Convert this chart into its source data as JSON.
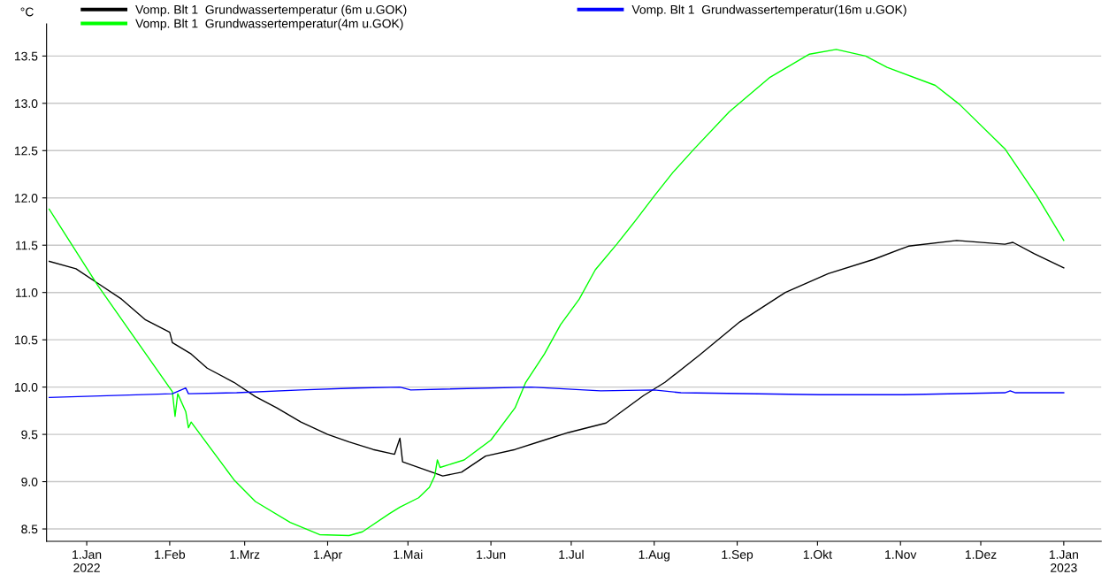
{
  "chart_data": {
    "type": "line",
    "ylabel": "°C",
    "grid": "y",
    "legend": "top",
    "marker": "none",
    "line_style": "solid",
    "xlim": [
      "2021-12-17",
      "2023-01-15"
    ],
    "ylim": [
      8.37,
      13.84
    ],
    "xticks": [
      {
        "value": "2022-01-01",
        "label": "1.Jan\n2022"
      },
      {
        "value": "2022-02-01",
        "label": "1.Feb"
      },
      {
        "value": "2022-03-01",
        "label": "1.Mrz"
      },
      {
        "value": "2022-04-01",
        "label": "1.Apr"
      },
      {
        "value": "2022-05-01",
        "label": "1.Mai"
      },
      {
        "value": "2022-06-01",
        "label": "1.Jun"
      },
      {
        "value": "2022-07-01",
        "label": "1.Jul"
      },
      {
        "value": "2022-08-01",
        "label": "1.Aug"
      },
      {
        "value": "2022-09-01",
        "label": "1.Sep"
      },
      {
        "value": "2022-10-01",
        "label": "1.Okt"
      },
      {
        "value": "2022-11-01",
        "label": "1.Nov"
      },
      {
        "value": "2022-12-01",
        "label": "1.Dez"
      },
      {
        "value": "2023-01-01",
        "label": "1.Jan\n2023"
      }
    ],
    "yticks": [
      {
        "value": 8.5,
        "label": "8.5"
      },
      {
        "value": 9,
        "label": "9.0"
      },
      {
        "value": 9.5,
        "label": "9.5"
      },
      {
        "value": 10,
        "label": "10.0"
      },
      {
        "value": 10.5,
        "label": "10.5"
      },
      {
        "value": 11,
        "label": "11.0"
      },
      {
        "value": 11.5,
        "label": "11.5"
      },
      {
        "value": 12,
        "label": "12.0"
      },
      {
        "value": 12.5,
        "label": "12.5"
      },
      {
        "value": 13,
        "label": "13.0"
      },
      {
        "value": 13.5,
        "label": "13.5"
      }
    ],
    "series": [
      {
        "name": "Vomp. Blt 1  Grundwassertemperatur (6m u.GOK)",
        "color": "#000000",
        "x": [
          "2021-12-18",
          "2021-12-28",
          "2022-01-05",
          "2022-01-14",
          "2022-01-23",
          "2022-02-01",
          "2022-02-02",
          "2022-02-09",
          "2022-02-15",
          "2022-02-25",
          "2022-03-05",
          "2022-03-13",
          "2022-03-22",
          "2022-04-01",
          "2022-04-09",
          "2022-04-18",
          "2022-04-26",
          "2022-04-28",
          "2022-04-29",
          "2022-05-10",
          "2022-05-14",
          "2022-05-21",
          "2022-05-30",
          "2022-06-10",
          "2022-06-21",
          "2022-06-30",
          "2022-07-14",
          "2022-07-28",
          "2022-08-05",
          "2022-08-18",
          "2022-09-02",
          "2022-09-19",
          "2022-10-05",
          "2022-10-22",
          "2022-11-04",
          "2022-11-22",
          "2022-12-10",
          "2022-12-13",
          "2022-12-21",
          "2023-01-01"
        ],
        "values": [
          11.33,
          11.25,
          11.1,
          10.93,
          10.71,
          10.58,
          10.47,
          10.35,
          10.2,
          10.05,
          9.9,
          9.78,
          9.63,
          9.5,
          9.42,
          9.34,
          9.29,
          9.46,
          9.21,
          9.1,
          9.06,
          9.1,
          9.27,
          9.34,
          9.44,
          9.52,
          9.62,
          9.91,
          10.05,
          10.34,
          10.69,
          11.0,
          11.2,
          11.35,
          11.49,
          11.55,
          11.51,
          11.53,
          11.41,
          11.26
        ]
      },
      {
        "name": "Vomp. Blt 1  Grundwassertemperatur(4m u.GOK)",
        "color": "#00ff00",
        "x": [
          "2021-12-18",
          "2022-01-05",
          "2022-02-02",
          "2022-02-03",
          "2022-02-04",
          "2022-02-07",
          "2022-02-08",
          "2022-02-09",
          "2022-02-25",
          "2022-03-05",
          "2022-03-18",
          "2022-03-29",
          "2022-04-09",
          "2022-04-14",
          "2022-04-24",
          "2022-04-28",
          "2022-05-05",
          "2022-05-09",
          "2022-05-11",
          "2022-05-12",
          "2022-05-13",
          "2022-05-22",
          "2022-06-01",
          "2022-06-10",
          "2022-06-14",
          "2022-06-21",
          "2022-06-27",
          "2022-07-04",
          "2022-07-10",
          "2022-07-18",
          "2022-07-25",
          "2022-08-01",
          "2022-08-08",
          "2022-08-16",
          "2022-08-29",
          "2022-09-13",
          "2022-09-28",
          "2022-10-08",
          "2022-10-19",
          "2022-10-27",
          "2022-11-14",
          "2022-11-23",
          "2022-12-10",
          "2022-12-22",
          "2023-01-01"
        ],
        "values": [
          11.88,
          11.08,
          9.95,
          9.69,
          9.93,
          9.74,
          9.57,
          9.63,
          9.02,
          8.79,
          8.57,
          8.44,
          8.43,
          8.47,
          8.66,
          8.73,
          8.83,
          8.94,
          9.06,
          9.23,
          9.15,
          9.23,
          9.44,
          9.78,
          10.05,
          10.35,
          10.66,
          10.93,
          11.24,
          11.51,
          11.76,
          12.02,
          12.27,
          12.52,
          12.91,
          13.27,
          13.52,
          13.57,
          13.5,
          13.38,
          13.19,
          12.99,
          12.52,
          12.02,
          11.55
        ]
      },
      {
        "name": "Vomp. Blt 1  Grundwassertemperatur(16m u.GOK)",
        "color": "#0000ff",
        "x": [
          "2021-12-18",
          "2022-02-02",
          "2022-02-07",
          "2022-02-08",
          "2022-02-26",
          "2022-03-22",
          "2022-04-11",
          "2022-04-28",
          "2022-05-02",
          "2022-06-16",
          "2022-07-12",
          "2022-08-01",
          "2022-08-11",
          "2022-10-02",
          "2022-11-02",
          "2022-12-10",
          "2022-12-12",
          "2022-12-14",
          "2023-01-01"
        ],
        "values": [
          9.89,
          9.93,
          9.99,
          9.93,
          9.94,
          9.97,
          9.99,
          10.0,
          9.97,
          10.0,
          9.96,
          9.97,
          9.94,
          9.92,
          9.92,
          9.94,
          9.96,
          9.94,
          9.94
        ]
      }
    ]
  }
}
